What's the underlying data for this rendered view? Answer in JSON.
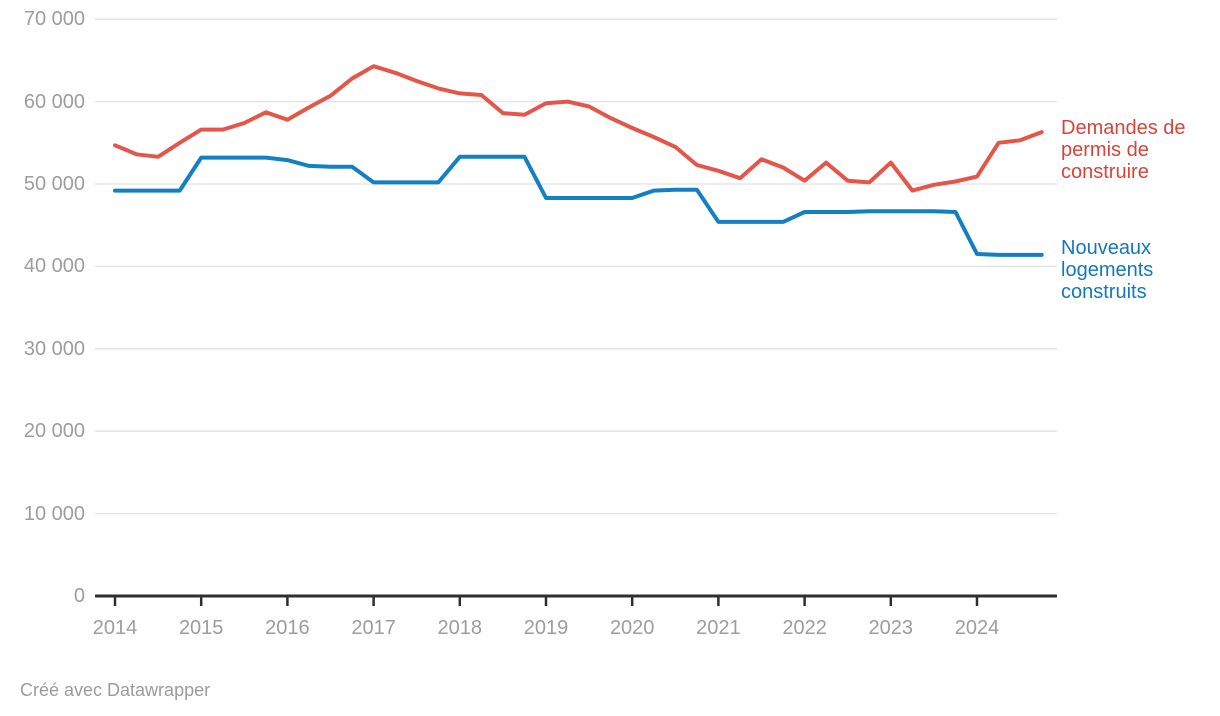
{
  "chart_data": {
    "type": "line",
    "title": "",
    "frequency": "quarterly",
    "x_start_label": "2014",
    "x_end_label": "2024",
    "x_tick_labels": [
      "2014",
      "2015",
      "2016",
      "2017",
      "2018",
      "2019",
      "2020",
      "2021",
      "2022",
      "2023",
      "2024"
    ],
    "y_ticks": [
      {
        "label": "70 000",
        "value": 70000
      },
      {
        "label": "60 000",
        "value": 60000
      },
      {
        "label": "50 000",
        "value": 50000
      },
      {
        "label": "40 000",
        "value": 40000
      },
      {
        "label": "30 000",
        "value": 30000
      },
      {
        "label": "20 000",
        "value": 20000
      },
      {
        "label": "10 000",
        "value": 10000
      },
      {
        "label": "0",
        "value": 0
      }
    ],
    "ylim": [
      0,
      70000
    ],
    "grid": "horizontal",
    "legend_position": "right-of-line-ends",
    "series": [
      {
        "name": "Demandes de permis de construire",
        "label_lines": [
          "Demandes de",
          "permis de",
          "construire"
        ],
        "color": "#e4564a",
        "values": [
          54700,
          53600,
          53300,
          55000,
          56600,
          56600,
          57400,
          58700,
          57800,
          59300,
          60700,
          62800,
          64300,
          63500,
          62500,
          61600,
          61000,
          60800,
          58600,
          58400,
          59800,
          60000,
          59400,
          58000,
          56800,
          55700,
          54500,
          52300,
          51600,
          50700,
          53000,
          52000,
          50400,
          52600,
          50400,
          50200,
          52600,
          49200,
          49900,
          50300,
          50900,
          55000,
          55300,
          56300
        ]
      },
      {
        "name": "Nouveaux logements construits",
        "label_lines": [
          "Nouveaux",
          "logements",
          "construits"
        ],
        "color": "#1480c4",
        "values": [
          49200,
          49200,
          49200,
          49200,
          53200,
          53200,
          53200,
          53200,
          52900,
          52200,
          52100,
          52100,
          50200,
          50200,
          50200,
          50200,
          53300,
          53300,
          53300,
          53300,
          48300,
          48300,
          48300,
          48300,
          48300,
          49200,
          49300,
          49300,
          45400,
          45400,
          45400,
          45400,
          46600,
          46600,
          46600,
          46700,
          46700,
          46700,
          46700,
          46600,
          41500,
          41400,
          41400,
          41400
        ]
      }
    ],
    "gridline_color": "#e2e2e2",
    "axis_color": "#2f2f2f",
    "tick_label_color": "#9d9d9d"
  },
  "footer": {
    "credit": "Créé avec Datawrapper"
  }
}
